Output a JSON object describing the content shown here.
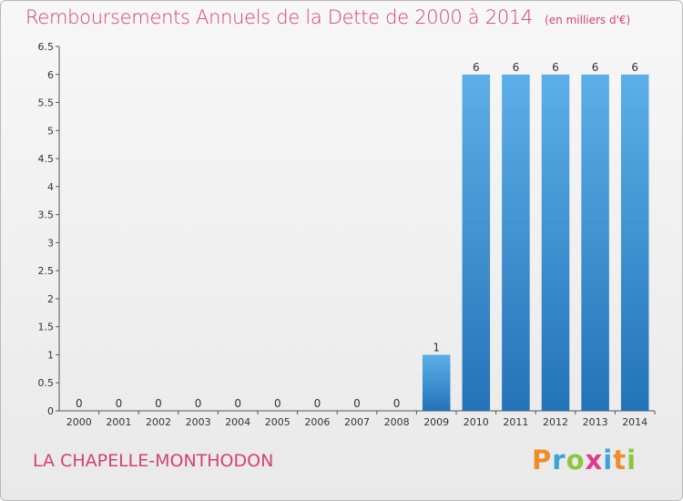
{
  "header": {
    "title": "Remboursements Annuels de la Dette de 2000 à 2014",
    "unit": "(en milliers d'€)"
  },
  "footer": {
    "commune": "LA CHAPELLE-MONTHODON",
    "logo_letters": [
      "P",
      "r",
      "o",
      "x",
      "i",
      "t",
      "i"
    ],
    "logo_colors": [
      "#f28c28",
      "#3aa3dc",
      "#8cc63f",
      "#e23a8f",
      "#3aa3dc",
      "#f28c28",
      "#8cc63f"
    ]
  },
  "chart_data": {
    "type": "bar",
    "title": "Remboursements Annuels de la Dette de 2000 à 2014",
    "xlabel": "",
    "ylabel": "",
    "categories": [
      "2000",
      "2001",
      "2002",
      "2003",
      "2004",
      "2005",
      "2006",
      "2007",
      "2008",
      "2009",
      "2010",
      "2011",
      "2012",
      "2013",
      "2014"
    ],
    "values": [
      0,
      0,
      0,
      0,
      0,
      0,
      0,
      0,
      0,
      1,
      6,
      6,
      6,
      6,
      6
    ],
    "data_labels": [
      "0",
      "0",
      "0",
      "0",
      "0",
      "0",
      "0",
      "0",
      "0",
      "1",
      "6",
      "6",
      "6",
      "6",
      "6"
    ],
    "ylim": [
      0,
      6.5
    ],
    "yticks": [
      "0",
      "0.5",
      "1",
      "1.5",
      "2",
      "2.5",
      "3",
      "3.5",
      "4",
      "4.5",
      "5",
      "5.5",
      "6",
      "6.5"
    ],
    "ytick_values": [
      0,
      0.5,
      1,
      1.5,
      2,
      2.5,
      3,
      3.5,
      4,
      4.5,
      5,
      5.5,
      6,
      6.5
    ],
    "grid": false,
    "bar_color": "#3f95d8"
  }
}
